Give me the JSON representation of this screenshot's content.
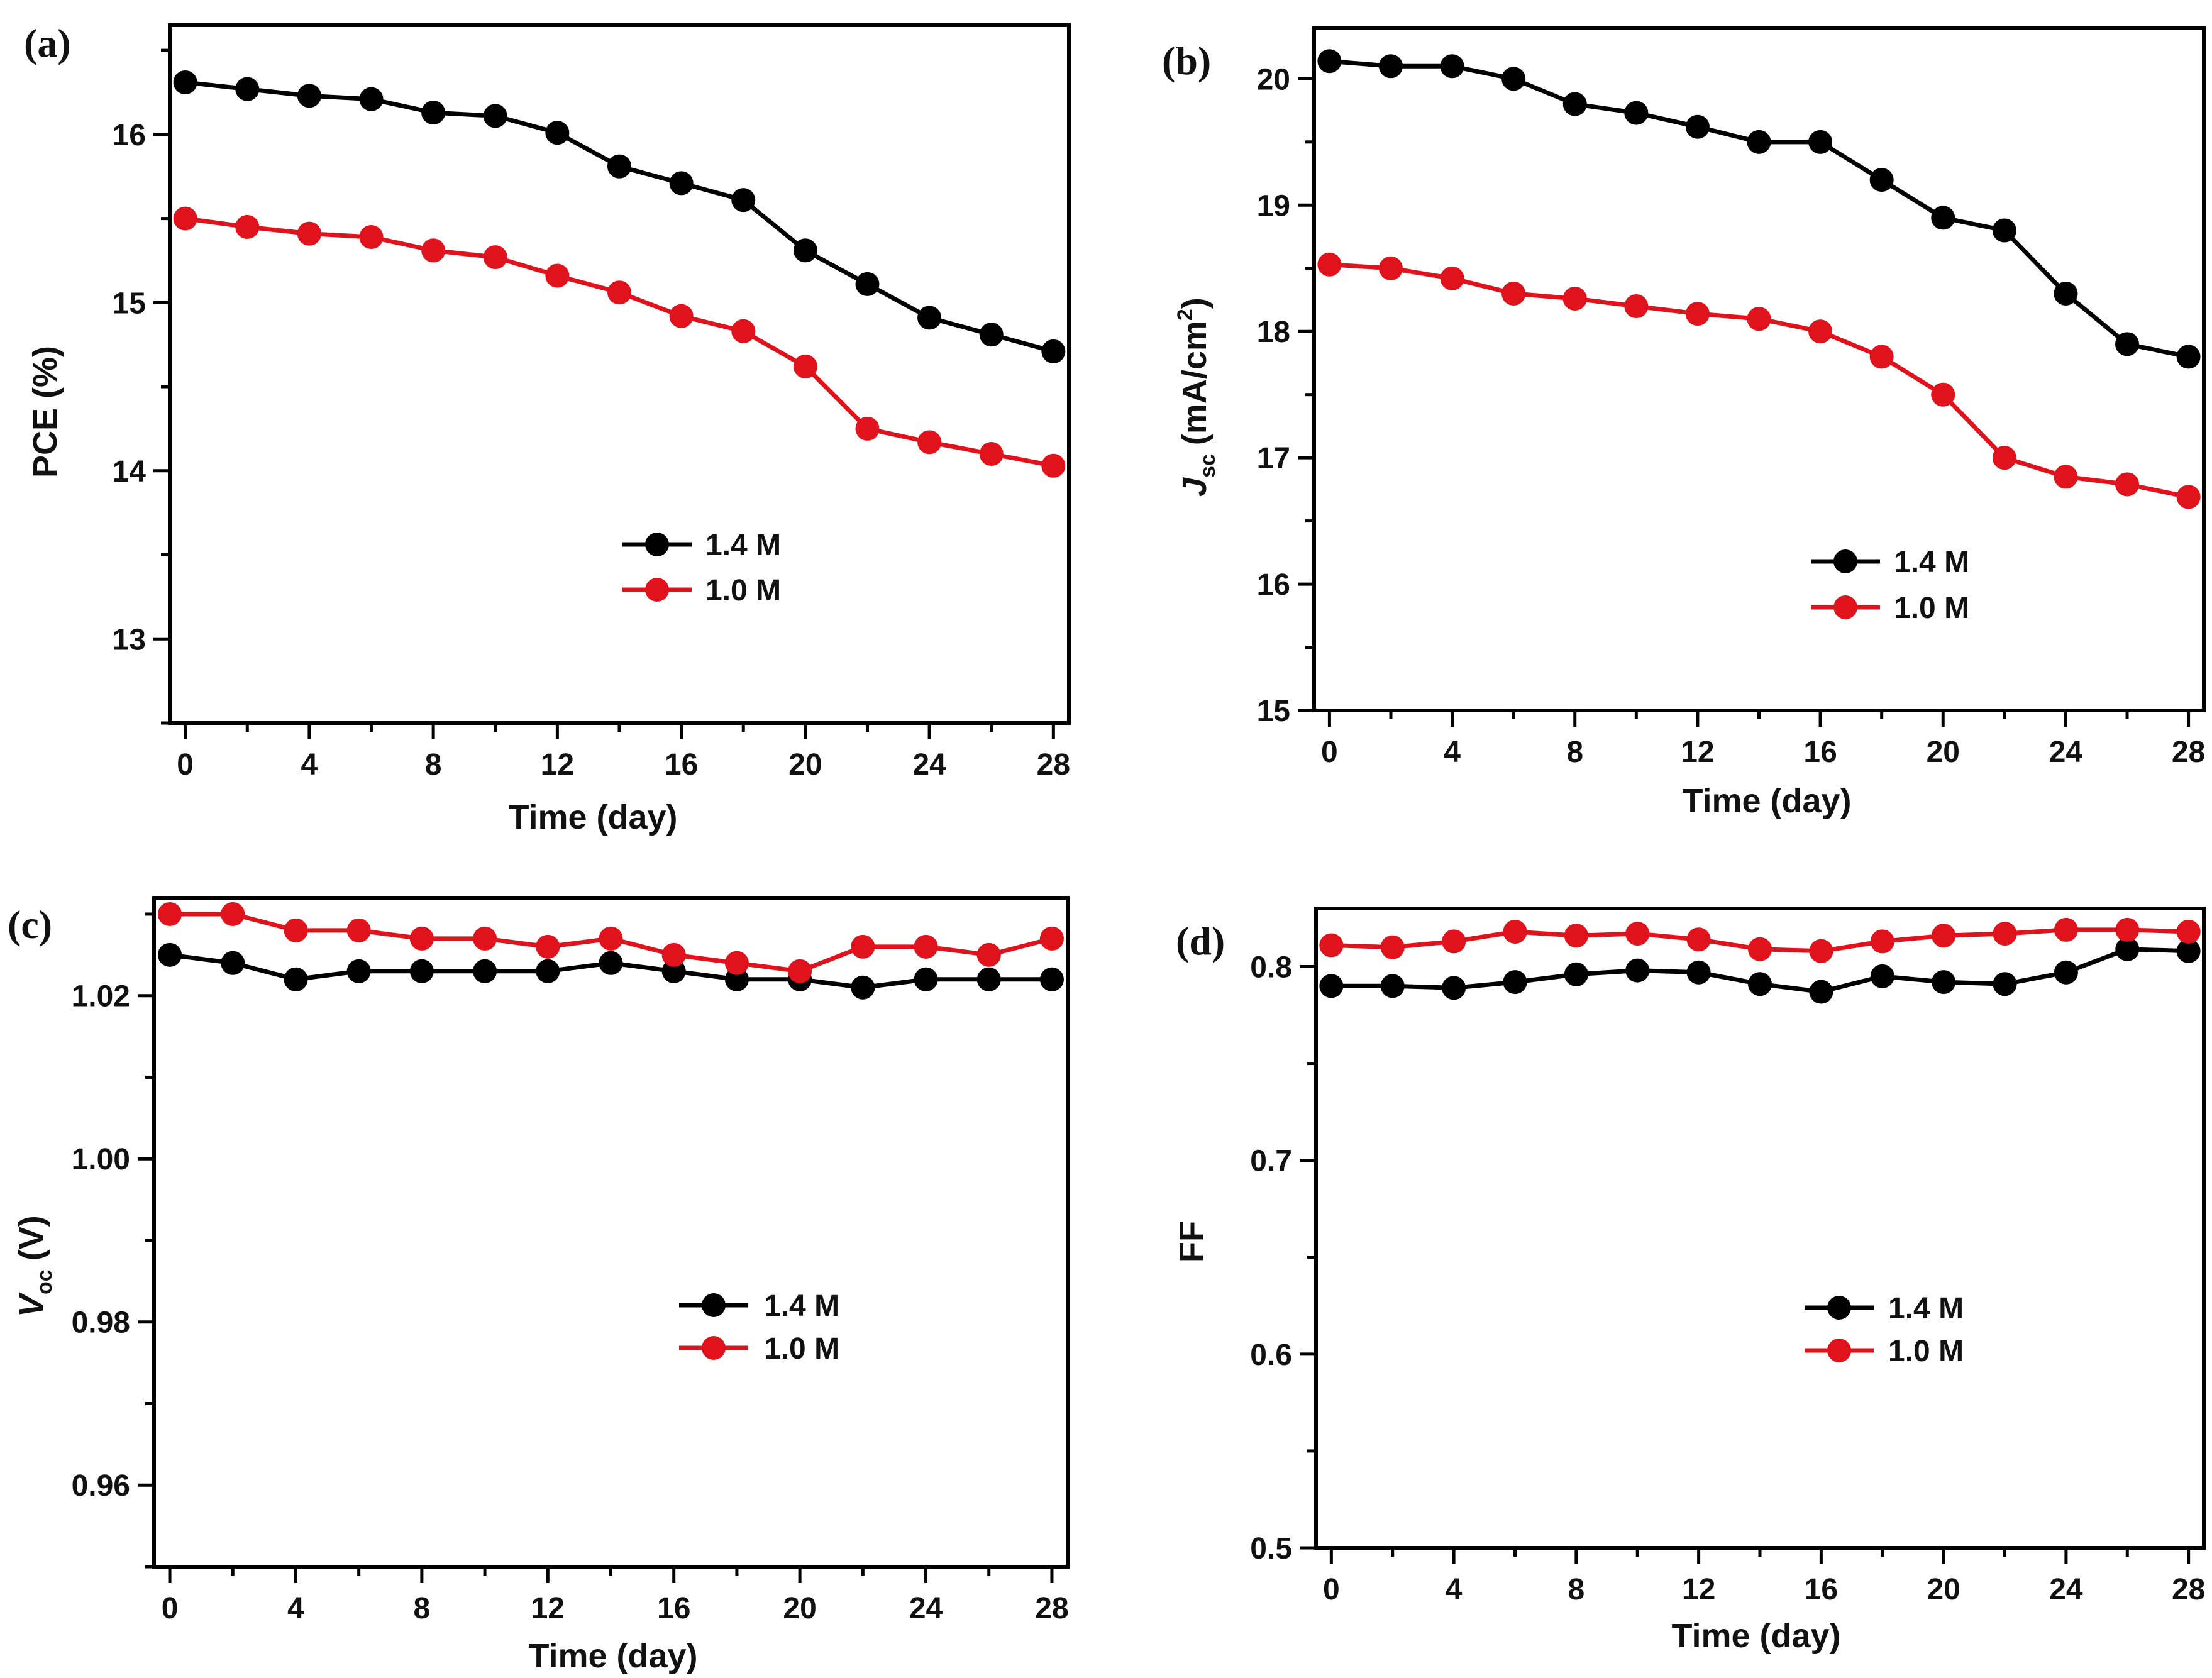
{
  "chart_data": [
    {
      "panel": "(a)",
      "type": "line",
      "xlabel": "Time (day)",
      "ylabel": "PCE (%)",
      "xlim": [
        -0.5,
        28.5
      ],
      "ylim": [
        12.5,
        16.65
      ],
      "xticks": [
        "0",
        "4",
        "8",
        "12",
        "16",
        "20",
        "24",
        "28"
      ],
      "yticks": [
        "13",
        "14",
        "15",
        "16"
      ],
      "x": [
        0,
        2,
        4,
        6,
        8,
        10,
        12,
        14,
        16,
        18,
        20,
        22,
        24,
        26,
        28
      ],
      "series": [
        {
          "name": "1.4 M",
          "color": "#000000",
          "values": [
            16.31,
            16.27,
            16.23,
            16.21,
            16.13,
            16.11,
            16.01,
            15.81,
            15.71,
            15.61,
            15.31,
            15.11,
            14.91,
            14.81,
            14.71
          ]
        },
        {
          "name": "1.0 M",
          "color": "#e0121c",
          "values": [
            15.5,
            15.45,
            15.41,
            15.39,
            15.31,
            15.27,
            15.16,
            15.06,
            14.92,
            14.83,
            14.62,
            14.25,
            14.17,
            14.1,
            14.03
          ]
        }
      ]
    },
    {
      "panel": "(b)",
      "type": "line",
      "xlabel": "Time (day)",
      "ylabel_main": "J",
      "ylabel_sub": "sc",
      "ylabel_units": "(mA/cm",
      "ylabel_sup": "2",
      "ylabel_close": ")",
      "xlim": [
        -0.5,
        28.5
      ],
      "ylim": [
        15.0,
        20.4
      ],
      "xticks": [
        "0",
        "4",
        "8",
        "12",
        "16",
        "20",
        "24",
        "28"
      ],
      "yticks": [
        "15",
        "16",
        "17",
        "18",
        "19",
        "20"
      ],
      "x": [
        0,
        2,
        4,
        6,
        8,
        10,
        12,
        14,
        16,
        18,
        20,
        22,
        24,
        26,
        28
      ],
      "series": [
        {
          "name": "1.4 M",
          "color": "#000000",
          "values": [
            20.14,
            20.1,
            20.1,
            20.0,
            19.8,
            19.73,
            19.62,
            19.5,
            19.5,
            19.2,
            18.9,
            18.8,
            18.3,
            17.9,
            17.8
          ]
        },
        {
          "name": "1.0 M",
          "color": "#e0121c",
          "values": [
            18.53,
            18.5,
            18.42,
            18.3,
            18.26,
            18.2,
            18.14,
            18.1,
            18.0,
            17.8,
            17.5,
            17.0,
            16.85,
            16.79,
            16.69
          ]
        }
      ]
    },
    {
      "panel": "(c)",
      "type": "line",
      "xlabel": "Time (day)",
      "ylabel_main": "V",
      "ylabel_sub": "oc",
      "ylabel_units": "(V)",
      "xlim": [
        -0.5,
        28.5
      ],
      "ylim": [
        0.95,
        1.032
      ],
      "xticks": [
        "0",
        "4",
        "8",
        "12",
        "16",
        "20",
        "24",
        "28"
      ],
      "yticks": [
        "0.96",
        "0.98",
        "1.00",
        "1.02"
      ],
      "x": [
        0,
        2,
        4,
        6,
        8,
        10,
        12,
        14,
        16,
        18,
        20,
        22,
        24,
        26,
        28
      ],
      "series": [
        {
          "name": "1.4 M",
          "color": "#000000",
          "values": [
            1.025,
            1.024,
            1.022,
            1.023,
            1.023,
            1.023,
            1.023,
            1.024,
            1.023,
            1.022,
            1.022,
            1.021,
            1.022,
            1.022,
            1.022
          ]
        },
        {
          "name": "1.0 M",
          "color": "#e0121c",
          "values": [
            1.03,
            1.03,
            1.028,
            1.028,
            1.027,
            1.027,
            1.026,
            1.027,
            1.025,
            1.024,
            1.023,
            1.026,
            1.026,
            1.025,
            1.027
          ]
        }
      ]
    },
    {
      "panel": "(d)",
      "type": "line",
      "xlabel": "Time (day)",
      "ylabel": "FF",
      "xlim": [
        -0.5,
        28.5
      ],
      "ylim": [
        0.5,
        0.83
      ],
      "xticks": [
        "0",
        "4",
        "8",
        "12",
        "16",
        "20",
        "24",
        "28"
      ],
      "yticks": [
        "0.5",
        "0.6",
        "0.7",
        "0.8"
      ],
      "x": [
        0,
        2,
        4,
        6,
        8,
        10,
        12,
        14,
        16,
        18,
        20,
        22,
        24,
        26,
        28
      ],
      "series": [
        {
          "name": "1.4 M",
          "color": "#000000",
          "values": [
            0.79,
            0.79,
            0.789,
            0.792,
            0.796,
            0.798,
            0.797,
            0.791,
            0.787,
            0.795,
            0.792,
            0.791,
            0.797,
            0.809,
            0.808
          ]
        },
        {
          "name": "1.0 M",
          "color": "#e0121c",
          "values": [
            0.811,
            0.81,
            0.813,
            0.818,
            0.816,
            0.817,
            0.814,
            0.809,
            0.808,
            0.813,
            0.816,
            0.817,
            0.819,
            0.819,
            0.818
          ]
        }
      ]
    }
  ]
}
